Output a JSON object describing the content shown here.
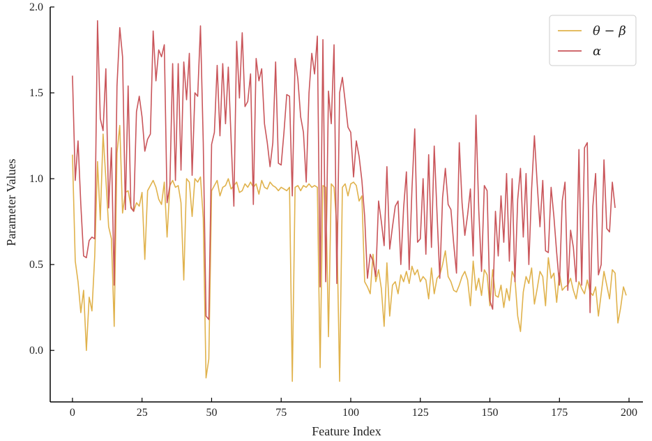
{
  "chart_data": {
    "type": "line",
    "title": "",
    "xlabel": "Feature Index",
    "ylabel": "Parameter Values",
    "xlim": [
      -8,
      205
    ],
    "ylim": [
      -0.3,
      2.0
    ],
    "xticks": [
      0,
      25,
      50,
      75,
      100,
      125,
      150,
      175,
      200
    ],
    "yticks": [
      0.0,
      0.5,
      1.0,
      1.5,
      2.0
    ],
    "xtick_labels": [
      "0",
      "25",
      "50",
      "75",
      "100",
      "125",
      "150",
      "175",
      "200"
    ],
    "ytick_labels": [
      "0.0",
      "0.5",
      "1.0",
      "1.5",
      "2.0"
    ],
    "grid": false,
    "legend_position": "top-right",
    "series": [
      {
        "name": "θ − β",
        "color": "#e0b24c",
        "values": [
          1.14,
          0.52,
          0.4,
          0.22,
          0.35,
          0.0,
          0.31,
          0.23,
          0.55,
          1.1,
          0.76,
          1.26,
          1.0,
          0.72,
          0.65,
          0.14,
          1.15,
          1.31,
          0.8,
          0.92,
          0.93,
          0.84,
          0.81,
          0.86,
          0.84,
          0.92,
          0.53,
          0.93,
          0.96,
          0.99,
          0.95,
          0.88,
          0.85,
          0.98,
          0.66,
          0.96,
          0.99,
          0.95,
          0.96,
          0.86,
          0.41,
          1.0,
          0.98,
          0.78,
          1.0,
          0.98,
          1.01,
          0.77,
          -0.16,
          -0.05,
          0.93,
          0.96,
          0.99,
          0.9,
          0.95,
          0.96,
          1.0,
          0.94,
          0.96,
          0.98,
          0.92,
          0.93,
          0.97,
          0.95,
          0.98,
          0.95,
          0.97,
          0.91,
          0.99,
          0.95,
          0.94,
          0.98,
          0.96,
          0.95,
          0.93,
          0.95,
          0.94,
          0.93,
          0.95,
          -0.18,
          0.95,
          0.96,
          0.93,
          0.96,
          0.95,
          0.97,
          0.95,
          0.96,
          0.95,
          -0.1,
          0.96,
          0.95,
          0.08,
          0.97,
          0.95,
          0.72,
          -0.18,
          0.95,
          0.97,
          0.9,
          0.97,
          0.98,
          0.96,
          0.87,
          0.9,
          0.4,
          0.37,
          0.33,
          0.56,
          0.4,
          0.47,
          0.36,
          0.14,
          0.51,
          0.2,
          0.38,
          0.4,
          0.33,
          0.44,
          0.4,
          0.46,
          0.39,
          0.49,
          0.44,
          0.47,
          0.4,
          0.43,
          0.41,
          0.3,
          0.48,
          0.33,
          0.42,
          0.44,
          0.5,
          0.58,
          0.43,
          0.4,
          0.35,
          0.34,
          0.38,
          0.43,
          0.46,
          0.41,
          0.26,
          0.52,
          0.35,
          0.42,
          0.32,
          0.47,
          0.44,
          0.26,
          0.47,
          0.32,
          0.31,
          0.38,
          0.25,
          0.36,
          0.29,
          0.46,
          0.42,
          0.2,
          0.11,
          0.34,
          0.43,
          0.39,
          0.48,
          0.27,
          0.36,
          0.46,
          0.43,
          0.26,
          0.54,
          0.42,
          0.45,
          0.28,
          0.45,
          0.35,
          0.37,
          0.38,
          0.42,
          0.35,
          0.3,
          0.4,
          0.36,
          0.33,
          0.41,
          0.34,
          0.32,
          0.37,
          0.2,
          0.33,
          0.46,
          0.38,
          0.3,
          0.47,
          0.45,
          0.16,
          0.25,
          0.37,
          0.32
        ]
      },
      {
        "name": "α",
        "color": "#c9555a",
        "values": [
          1.6,
          0.99,
          1.22,
          0.85,
          0.55,
          0.54,
          0.64,
          0.66,
          0.65,
          1.92,
          1.35,
          1.28,
          1.64,
          0.83,
          1.18,
          0.38,
          1.54,
          1.88,
          1.71,
          0.82,
          1.54,
          0.83,
          0.81,
          1.39,
          1.48,
          1.36,
          1.16,
          1.23,
          1.26,
          1.86,
          1.57,
          1.75,
          1.71,
          1.78,
          0.86,
          0.96,
          1.67,
          0.99,
          1.67,
          1.05,
          1.68,
          1.46,
          1.73,
          1.02,
          1.5,
          1.48,
          1.89,
          1.21,
          0.2,
          0.18,
          1.2,
          1.27,
          1.66,
          1.25,
          1.67,
          1.32,
          1.65,
          1.23,
          0.84,
          1.8,
          1.47,
          1.85,
          1.42,
          1.45,
          1.61,
          0.85,
          1.7,
          1.57,
          1.64,
          1.32,
          1.21,
          1.07,
          1.21,
          1.68,
          1.09,
          1.08,
          1.27,
          1.49,
          1.48,
          0.9,
          1.7,
          1.58,
          1.36,
          1.27,
          0.98,
          1.5,
          1.73,
          1.61,
          1.83,
          0.37,
          1.81,
          0.4,
          1.51,
          1.32,
          1.78,
          0.39,
          1.5,
          1.59,
          1.45,
          1.3,
          1.27,
          1.01,
          1.22,
          1.13,
          0.99,
          0.78,
          0.42,
          0.56,
          0.52,
          0.43,
          0.87,
          0.75,
          0.61,
          1.07,
          0.59,
          0.72,
          0.84,
          0.87,
          0.5,
          0.83,
          1.04,
          0.47,
          0.94,
          1.29,
          0.63,
          0.65,
          1.0,
          0.56,
          1.14,
          0.6,
          1.19,
          0.8,
          0.42,
          0.89,
          1.06,
          0.85,
          0.82,
          0.62,
          0.45,
          1.21,
          0.86,
          0.67,
          0.79,
          0.94,
          0.55,
          1.37,
          0.82,
          0.46,
          0.96,
          0.93,
          0.29,
          0.24,
          0.81,
          0.55,
          0.9,
          0.63,
          1.03,
          0.52,
          1.0,
          0.4,
          0.88,
          1.06,
          0.66,
          1.03,
          0.5,
          0.94,
          1.25,
          0.97,
          0.72,
          0.99,
          0.58,
          0.57,
          0.95,
          0.78,
          0.57,
          0.38,
          0.87,
          0.98,
          0.35,
          0.7,
          0.6,
          0.4,
          1.17,
          0.38,
          1.18,
          1.21,
          0.22,
          0.84,
          1.03,
          0.44,
          0.5,
          1.11,
          0.71,
          0.69,
          0.98,
          0.83
        ]
      }
    ]
  }
}
